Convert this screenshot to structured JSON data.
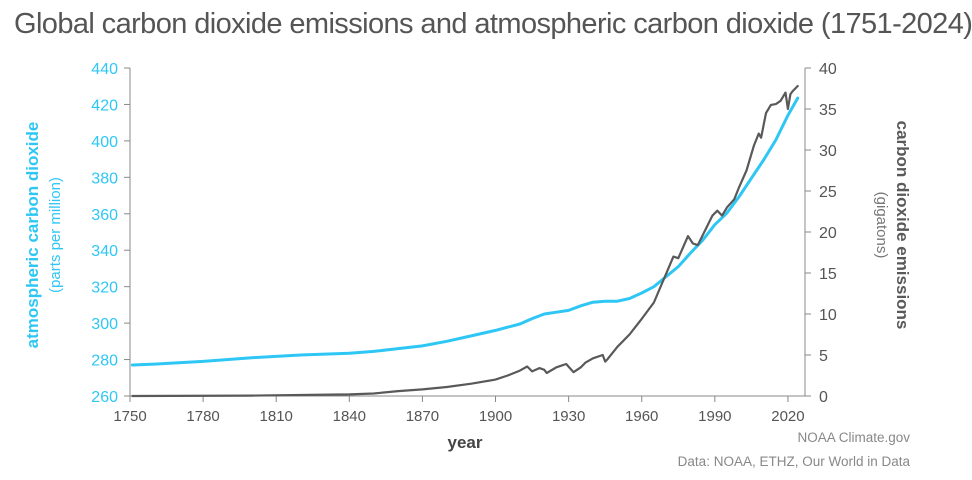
{
  "title": "Global carbon dioxide emissions and atmospheric carbon dioxide (1751-2024)",
  "credits": {
    "line1": "NOAA Climate.gov",
    "line2": "Data: NOAA, ETHZ, Our World in Data"
  },
  "colors": {
    "co2_ppm": "#2ec7f5",
    "emissions": "#595959",
    "axis": "#888888",
    "tick_text": "#555555"
  },
  "chart_data": {
    "type": "line",
    "title": "Global carbon dioxide emissions and atmospheric carbon dioxide (1751-2024)",
    "xlabel": "year",
    "xlim": [
      1750,
      2027
    ],
    "x_ticks": [
      1750,
      1780,
      1810,
      1840,
      1870,
      1900,
      1930,
      1960,
      1990,
      2020
    ],
    "left_axis": {
      "label_line1": "atmospheric carbon dioxide",
      "label_line2": "(parts per million)",
      "ylim": [
        260,
        440
      ],
      "ticks": [
        260,
        280,
        300,
        320,
        340,
        360,
        380,
        400,
        420,
        440
      ]
    },
    "right_axis": {
      "label_line1": "carbon dioxide emissions",
      "label_line2": "(gigatons)",
      "ylim": [
        0,
        40
      ],
      "ticks": [
        0,
        5,
        10,
        15,
        20,
        25,
        30,
        35,
        40
      ]
    },
    "grid": false,
    "series": [
      {
        "name": "atmospheric carbon dioxide (ppm)",
        "axis": "left",
        "x": [
          1751,
          1760,
          1780,
          1800,
          1820,
          1840,
          1850,
          1860,
          1870,
          1880,
          1890,
          1900,
          1910,
          1915,
          1920,
          1925,
          1930,
          1935,
          1940,
          1945,
          1950,
          1955,
          1960,
          1965,
          1970,
          1975,
          1980,
          1985,
          1990,
          1995,
          2000,
          2005,
          2010,
          2015,
          2020,
          2024
        ],
        "values": [
          277,
          277.5,
          279,
          281,
          282.5,
          283.5,
          284.5,
          286,
          287.5,
          290,
          293,
          296,
          299.5,
          302.5,
          305,
          306,
          307,
          309.5,
          311.5,
          312,
          312,
          313.5,
          316.5,
          320,
          325.5,
          331,
          338.5,
          345.5,
          354,
          360.5,
          369.5,
          379.5,
          389.5,
          400.5,
          414,
          423.5
        ]
      },
      {
        "name": "carbon dioxide emissions (gigatons)",
        "axis": "right",
        "x": [
          1751,
          1800,
          1840,
          1850,
          1860,
          1870,
          1880,
          1890,
          1900,
          1905,
          1910,
          1913,
          1915,
          1918,
          1920,
          1921,
          1925,
          1929,
          1932,
          1935,
          1937,
          1940,
          1944,
          1945,
          1946,
          1950,
          1955,
          1960,
          1965,
          1970,
          1973,
          1975,
          1979,
          1981,
          1983,
          1986,
          1989,
          1991,
          1993,
          1995,
          1998,
          2000,
          2003,
          2006,
          2008,
          2009,
          2011,
          2013,
          2015,
          2017,
          2019,
          2020,
          2021,
          2022,
          2023,
          2024
        ],
        "values": [
          0,
          0.05,
          0.2,
          0.3,
          0.6,
          0.8,
          1.1,
          1.5,
          2.0,
          2.5,
          3.1,
          3.6,
          3.0,
          3.4,
          3.2,
          2.8,
          3.5,
          3.9,
          2.9,
          3.5,
          4.1,
          4.6,
          5.0,
          4.2,
          4.5,
          6.0,
          7.5,
          9.4,
          11.4,
          14.9,
          17.0,
          16.8,
          19.5,
          18.6,
          18.4,
          20.2,
          22.0,
          22.6,
          22.0,
          23.0,
          24.0,
          25.5,
          27.5,
          30.5,
          32.0,
          31.5,
          34.5,
          35.5,
          35.6,
          36.0,
          37.0,
          35.0,
          36.8,
          37.2,
          37.5,
          37.8
        ]
      }
    ]
  }
}
